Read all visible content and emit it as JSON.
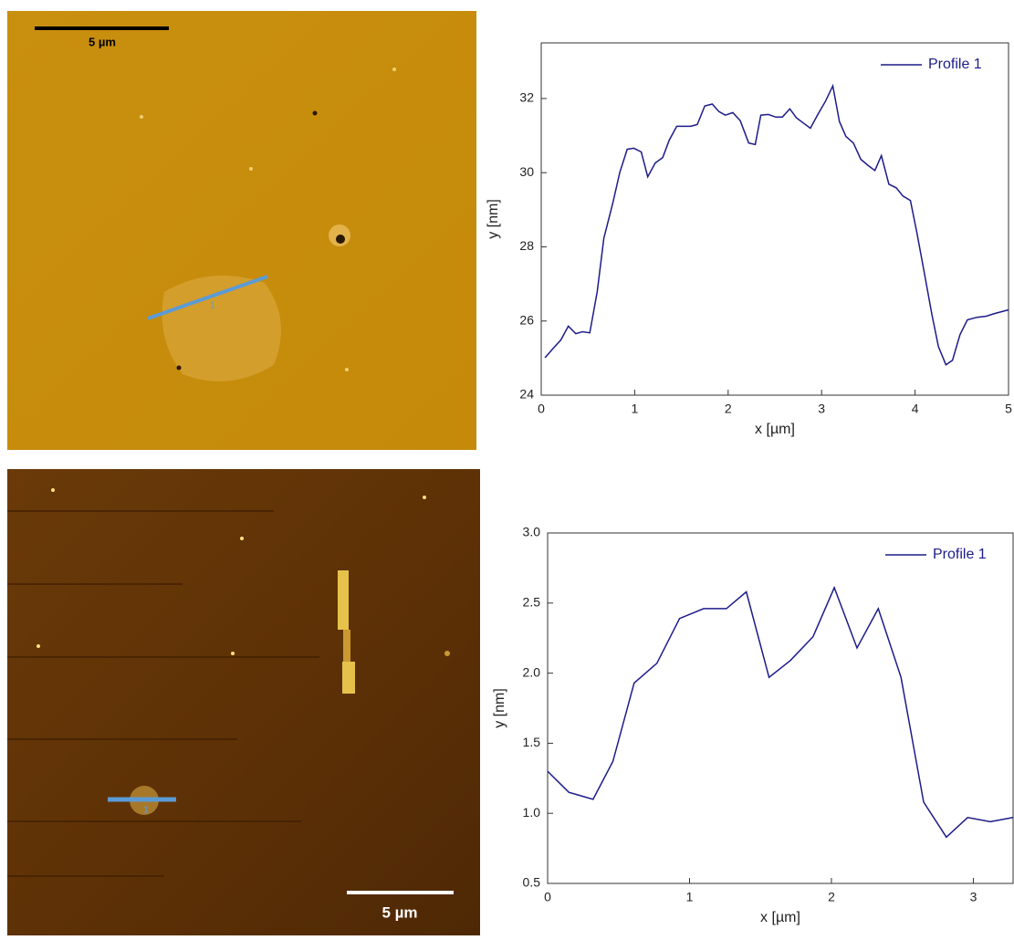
{
  "images": [
    {
      "scale_bar": "5 µm",
      "marker": "1"
    },
    {
      "scale_bar": "5 µm",
      "marker": "1"
    }
  ],
  "chart_data": [
    {
      "type": "line",
      "xlabel": "x [µm]",
      "ylabel": "y [nm]",
      "x": [
        0.04,
        0.12,
        0.21,
        0.29,
        0.37,
        0.44,
        0.52,
        0.6,
        0.67,
        0.77,
        0.84,
        0.92,
        0.99,
        1.07,
        1.14,
        1.22,
        1.3,
        1.37,
        1.45,
        1.52,
        1.6,
        1.67,
        1.75,
        1.83,
        1.9,
        1.97,
        2.05,
        2.13,
        2.22,
        2.29,
        2.35,
        2.43,
        2.51,
        2.58,
        2.66,
        2.73,
        2.81,
        2.88,
        2.96,
        3.04,
        3.12,
        3.19,
        3.26,
        3.34,
        3.42,
        3.5,
        3.57,
        3.64,
        3.72,
        3.8,
        3.87,
        3.95,
        4.02,
        4.1,
        4.18,
        4.25,
        4.33,
        4.4,
        4.48,
        4.56,
        4.66,
        4.76,
        4.85,
        5.0
      ],
      "series": [
        {
          "name": "Profile 1",
          "color": "#1c1c8a",
          "values": [
            25.01,
            25.24,
            25.49,
            25.86,
            25.66,
            25.71,
            25.68,
            26.8,
            28.23,
            29.22,
            30.0,
            30.63,
            30.66,
            30.56,
            29.89,
            30.26,
            30.41,
            30.88,
            31.25,
            31.25,
            31.25,
            31.3,
            31.8,
            31.85,
            31.65,
            31.55,
            31.62,
            31.4,
            30.8,
            30.76,
            31.55,
            31.57,
            31.5,
            31.5,
            31.72,
            31.48,
            31.33,
            31.2,
            31.57,
            31.92,
            32.34,
            31.38,
            30.98,
            30.8,
            30.36,
            30.19,
            30.06,
            30.46,
            29.69,
            29.59,
            29.37,
            29.25,
            28.38,
            27.29,
            26.18,
            25.31,
            24.82,
            24.94,
            25.63,
            26.03,
            26.1,
            26.13,
            26.2,
            26.3
          ]
        }
      ],
      "xlim": [
        0,
        5
      ],
      "xticks": [
        0,
        1,
        2,
        3,
        4,
        5
      ],
      "ylim": [
        24,
        33.5
      ],
      "yticks": [
        24,
        26,
        28,
        30,
        32
      ],
      "legend": "upper right"
    },
    {
      "type": "line",
      "xlabel": "x [µm]",
      "ylabel": "y [nm]",
      "x": [
        0,
        0.15,
        0.32,
        0.46,
        0.61,
        0.77,
        0.93,
        1.1,
        1.26,
        1.4,
        1.56,
        1.71,
        1.87,
        2.02,
        2.18,
        2.33,
        2.49,
        2.65,
        2.81,
        2.96,
        3.12,
        3.28
      ],
      "series": [
        {
          "name": "Profile 1",
          "color": "#1c1c8a",
          "values": [
            1.3,
            1.15,
            1.1,
            1.37,
            1.93,
            2.07,
            2.39,
            2.46,
            2.46,
            2.58,
            1.97,
            2.09,
            2.26,
            2.61,
            2.18,
            2.46,
            1.97,
            1.08,
            0.83,
            0.97,
            0.94,
            0.97
          ]
        }
      ],
      "xlim": [
        0,
        3.28
      ],
      "xticks": [
        0,
        1,
        2,
        3
      ],
      "ylim": [
        0.5,
        3
      ],
      "yticks": [
        0.5,
        {
          "value": 1,
          "label": "1.0"
        },
        1.5,
        {
          "value": 2,
          "label": "2.0"
        },
        2.5,
        {
          "value": 3,
          "label": "3.0"
        }
      ],
      "legend": "upper right"
    }
  ]
}
